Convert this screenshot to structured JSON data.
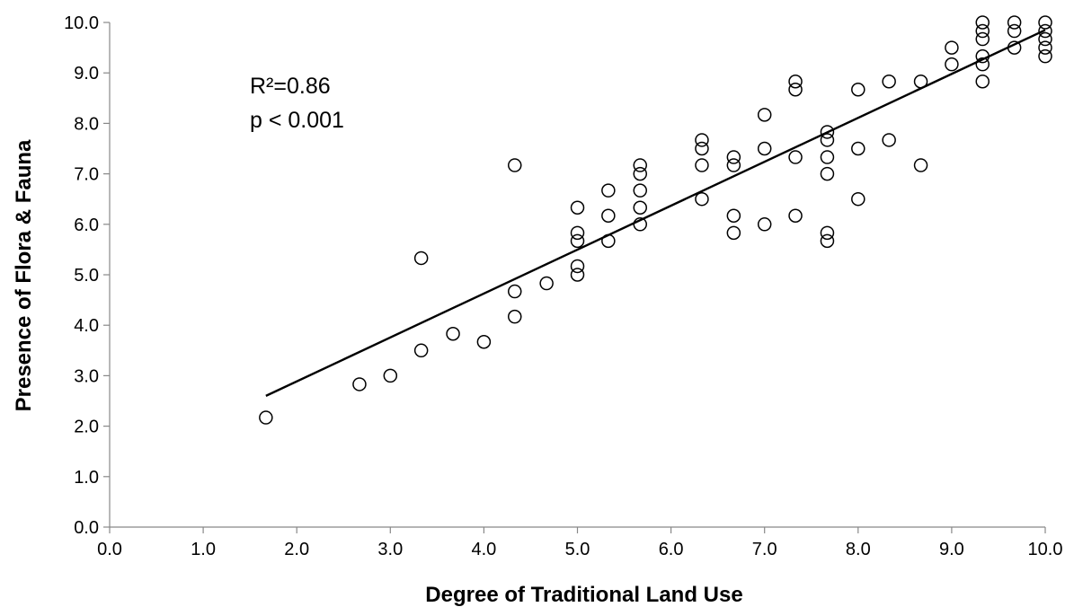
{
  "chart_data": {
    "type": "scatter",
    "title": "",
    "xlabel": "Degree of Traditional Land Use",
    "ylabel": "Presence of Flora & Fauna",
    "xlim": [
      0.0,
      10.0
    ],
    "ylim": [
      0.0,
      10.0
    ],
    "x_ticks": [
      "0.0",
      "1.0",
      "2.0",
      "3.0",
      "4.0",
      "5.0",
      "6.0",
      "7.0",
      "8.0",
      "9.0",
      "10.0"
    ],
    "y_ticks": [
      "0.0",
      "1.0",
      "2.0",
      "3.0",
      "4.0",
      "5.0",
      "6.0",
      "7.0",
      "8.0",
      "9.0",
      "10.0"
    ],
    "grid": false,
    "annotations": [
      "R²=0.86",
      "p < 0.001"
    ],
    "trendline": {
      "x": [
        1.67,
        10.0
      ],
      "y": [
        2.6,
        9.85
      ]
    },
    "points": [
      [
        1.67,
        2.17
      ],
      [
        2.67,
        2.83
      ],
      [
        3.0,
        3.0
      ],
      [
        3.33,
        3.5
      ],
      [
        3.33,
        5.33
      ],
      [
        3.67,
        3.83
      ],
      [
        4.0,
        3.67
      ],
      [
        4.33,
        4.17
      ],
      [
        4.33,
        4.67
      ],
      [
        4.33,
        7.17
      ],
      [
        4.67,
        4.83
      ],
      [
        5.0,
        5.0
      ],
      [
        5.0,
        5.17
      ],
      [
        5.0,
        5.67
      ],
      [
        5.0,
        5.83
      ],
      [
        5.0,
        6.33
      ],
      [
        5.33,
        5.67
      ],
      [
        5.33,
        6.17
      ],
      [
        5.33,
        6.67
      ],
      [
        5.67,
        6.0
      ],
      [
        5.67,
        6.33
      ],
      [
        5.67,
        6.67
      ],
      [
        5.67,
        7.0
      ],
      [
        5.67,
        7.17
      ],
      [
        6.33,
        6.5
      ],
      [
        6.33,
        7.17
      ],
      [
        6.33,
        7.5
      ],
      [
        6.33,
        7.67
      ],
      [
        6.67,
        5.83
      ],
      [
        6.67,
        6.17
      ],
      [
        6.67,
        7.17
      ],
      [
        6.67,
        7.33
      ],
      [
        7.0,
        6.0
      ],
      [
        7.0,
        7.5
      ],
      [
        7.0,
        8.17
      ],
      [
        7.33,
        6.17
      ],
      [
        7.33,
        7.33
      ],
      [
        7.33,
        8.67
      ],
      [
        7.33,
        8.83
      ],
      [
        7.67,
        5.67
      ],
      [
        7.67,
        5.83
      ],
      [
        7.67,
        7.0
      ],
      [
        7.67,
        7.33
      ],
      [
        7.67,
        7.67
      ],
      [
        7.67,
        7.83
      ],
      [
        8.0,
        6.5
      ],
      [
        8.0,
        7.5
      ],
      [
        8.0,
        8.67
      ],
      [
        8.33,
        7.67
      ],
      [
        8.33,
        8.83
      ],
      [
        8.67,
        7.17
      ],
      [
        8.67,
        8.83
      ],
      [
        9.0,
        9.17
      ],
      [
        9.0,
        9.5
      ],
      [
        9.33,
        8.83
      ],
      [
        9.33,
        9.17
      ],
      [
        9.33,
        9.33
      ],
      [
        9.33,
        9.67
      ],
      [
        9.33,
        9.83
      ],
      [
        9.33,
        10.0
      ],
      [
        9.67,
        9.5
      ],
      [
        9.67,
        9.83
      ],
      [
        9.67,
        10.0
      ],
      [
        10.0,
        9.33
      ],
      [
        10.0,
        9.5
      ],
      [
        10.0,
        9.67
      ],
      [
        10.0,
        9.83
      ],
      [
        10.0,
        10.0
      ]
    ]
  }
}
